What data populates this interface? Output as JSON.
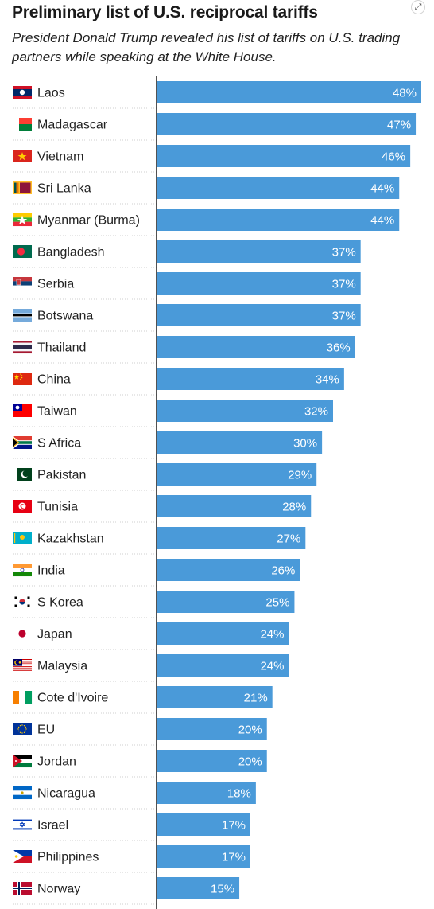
{
  "header": {
    "title": "Preliminary list of U.S. reciprocal tariffs",
    "subtitle": "President Donald Trump revealed his list of tariffs on U.S. trading partners while speaking at the White House."
  },
  "toolbar": {
    "expand_icon": "expand-arrows-icon"
  },
  "colors": {
    "bar": "#4a9ad9",
    "axis": "#1a1a1a",
    "gridline": "#cfcfcf"
  },
  "chart_data": {
    "type": "bar",
    "orientation": "horizontal",
    "title": "Preliminary list of U.S. reciprocal tariffs",
    "subtitle": "President Donald Trump revealed his list of tariffs on U.S. trading partners while speaking at the White House.",
    "xlim": [
      0,
      48
    ],
    "grid": false,
    "legend": "none",
    "categories": [
      "Laos",
      "Madagascar",
      "Vietnam",
      "Sri Lanka",
      "Myanmar (Burma)",
      "Bangladesh",
      "Serbia",
      "Botswana",
      "Thailand",
      "China",
      "Taiwan",
      "S Africa",
      "Pakistan",
      "Tunisia",
      "Kazakhstan",
      "India",
      "S Korea",
      "Japan",
      "Malaysia",
      "Cote d'Ivoire",
      "EU",
      "Jordan",
      "Nicaragua",
      "Israel",
      "Philippines",
      "Norway"
    ],
    "values": [
      48,
      47,
      46,
      44,
      44,
      37,
      37,
      37,
      36,
      34,
      32,
      30,
      29,
      28,
      27,
      26,
      25,
      24,
      24,
      21,
      20,
      20,
      18,
      17,
      17,
      15
    ],
    "value_labels": [
      "48%",
      "47%",
      "46%",
      "44%",
      "44%",
      "37%",
      "37%",
      "37%",
      "36%",
      "34%",
      "32%",
      "30%",
      "29%",
      "28%",
      "27%",
      "26%",
      "25%",
      "24%",
      "24%",
      "21%",
      "20%",
      "20%",
      "18%",
      "17%",
      "17%",
      "15%"
    ],
    "flags": [
      "laos-flag-icon",
      "madagascar-flag-icon",
      "vietnam-flag-icon",
      "sri-lanka-flag-icon",
      "myanmar-flag-icon",
      "bangladesh-flag-icon",
      "serbia-flag-icon",
      "botswana-flag-icon",
      "thailand-flag-icon",
      "china-flag-icon",
      "taiwan-flag-icon",
      "south-africa-flag-icon",
      "pakistan-flag-icon",
      "tunisia-flag-icon",
      "kazakhstan-flag-icon",
      "india-flag-icon",
      "south-korea-flag-icon",
      "japan-flag-icon",
      "malaysia-flag-icon",
      "cote-divoire-flag-icon",
      "eu-flag-icon",
      "jordan-flag-icon",
      "nicaragua-flag-icon",
      "israel-flag-icon",
      "philippines-flag-icon",
      "norway-flag-icon"
    ]
  }
}
